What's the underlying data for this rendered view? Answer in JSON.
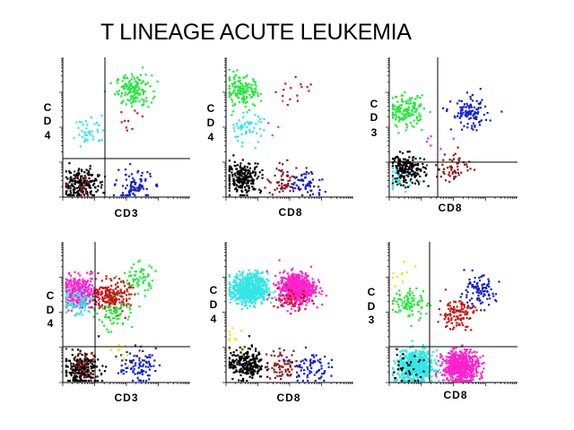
{
  "title": "T LINEAGE ACUTE LEUKEMIA",
  "colors": {
    "green": "#22e83a",
    "cyan": "#33e6e6",
    "black": "#000000",
    "blue": "#1020cc",
    "red": "#cc1010",
    "darkred": "#8b1a1a",
    "magenta": "#ff22cc",
    "yellow": "#e8e800"
  },
  "chart_data": [
    {
      "type": "scatter",
      "xlabel": "CD3",
      "ylabel": "CD4",
      "ylabel_chars": [
        "C",
        "D",
        "4"
      ],
      "axis_scale": "log",
      "populations": [
        {
          "color": "green",
          "cx": 0.55,
          "cy": 0.77,
          "n": 150
        },
        {
          "color": "cyan",
          "cx": 0.2,
          "cy": 0.48,
          "n": 40
        },
        {
          "color": "black",
          "cx": 0.13,
          "cy": 0.1,
          "n": 210
        },
        {
          "color": "darkred",
          "cx": 0.12,
          "cy": 0.1,
          "n": 25
        },
        {
          "color": "blue",
          "cx": 0.55,
          "cy": 0.08,
          "n": 90
        },
        {
          "color": "red",
          "cx": 0.5,
          "cy": 0.55,
          "n": 10
        }
      ]
    },
    {
      "type": "scatter",
      "xlabel": "CD8",
      "ylabel": "CD4",
      "ylabel_chars": [
        "C",
        "D",
        "4"
      ],
      "axis_scale": "log",
      "populations": [
        {
          "color": "green",
          "cx": 0.12,
          "cy": 0.76,
          "n": 150
        },
        {
          "color": "cyan",
          "cx": 0.15,
          "cy": 0.5,
          "n": 55
        },
        {
          "color": "black",
          "cx": 0.13,
          "cy": 0.15,
          "n": 210
        },
        {
          "color": "darkred",
          "cx": 0.45,
          "cy": 0.12,
          "n": 60
        },
        {
          "color": "blue",
          "cx": 0.62,
          "cy": 0.1,
          "n": 60
        },
        {
          "color": "red",
          "cx": 0.55,
          "cy": 0.75,
          "n": 15
        },
        {
          "color": "magenta",
          "cx": 0.45,
          "cy": 0.55,
          "n": 4
        }
      ]
    },
    {
      "type": "scatter",
      "xlabel": "CD8",
      "ylabel": "CD3",
      "ylabel_chars": [
        "C",
        "D",
        "3"
      ],
      "axis_scale": "log",
      "populations": [
        {
          "color": "green",
          "cx": 0.12,
          "cy": 0.62,
          "n": 150
        },
        {
          "color": "blue",
          "cx": 0.62,
          "cy": 0.6,
          "n": 110
        },
        {
          "color": "black",
          "cx": 0.13,
          "cy": 0.2,
          "n": 200
        },
        {
          "color": "darkred",
          "cx": 0.5,
          "cy": 0.22,
          "n": 55
        },
        {
          "color": "cyan",
          "cx": 0.08,
          "cy": 0.15,
          "n": 25
        },
        {
          "color": "magenta",
          "cx": 0.38,
          "cy": 0.4,
          "n": 6
        }
      ]
    },
    {
      "type": "scatter",
      "xlabel": "CD3",
      "ylabel": "CD4",
      "ylabel_chars": [
        "C",
        "D",
        "4"
      ],
      "axis_scale": "log",
      "populations": [
        {
          "color": "magenta",
          "cx": 0.12,
          "cy": 0.65,
          "n": 320
        },
        {
          "color": "cyan",
          "cx": 0.1,
          "cy": 0.58,
          "n": 80
        },
        {
          "color": "red",
          "cx": 0.38,
          "cy": 0.62,
          "n": 190
        },
        {
          "color": "green",
          "cx": 0.4,
          "cy": 0.5,
          "n": 70
        },
        {
          "color": "green",
          "cx": 0.58,
          "cy": 0.75,
          "n": 60
        },
        {
          "color": "black",
          "cx": 0.14,
          "cy": 0.1,
          "n": 230
        },
        {
          "color": "darkred",
          "cx": 0.14,
          "cy": 0.12,
          "n": 40
        },
        {
          "color": "blue",
          "cx": 0.58,
          "cy": 0.13,
          "n": 90
        },
        {
          "color": "yellow",
          "cx": 0.45,
          "cy": 0.2,
          "n": 12
        }
      ]
    },
    {
      "type": "scatter",
      "xlabel": "CD8",
      "ylabel": "CD4",
      "ylabel_chars": [
        "C",
        "D",
        "4"
      ],
      "axis_scale": "log",
      "populations": [
        {
          "color": "cyan",
          "cx": 0.18,
          "cy": 0.67,
          "n": 650
        },
        {
          "color": "magenta",
          "cx": 0.55,
          "cy": 0.68,
          "n": 600
        },
        {
          "color": "black",
          "cx": 0.15,
          "cy": 0.14,
          "n": 230
        },
        {
          "color": "darkred",
          "cx": 0.45,
          "cy": 0.13,
          "n": 70
        },
        {
          "color": "blue",
          "cx": 0.65,
          "cy": 0.12,
          "n": 70
        },
        {
          "color": "red",
          "cx": 0.5,
          "cy": 0.6,
          "n": 50
        },
        {
          "color": "yellow",
          "cx": 0.06,
          "cy": 0.28,
          "n": 12
        }
      ]
    },
    {
      "type": "scatter",
      "xlabel": "CD8",
      "ylabel": "CD3",
      "ylabel_chars": [
        "C",
        "D",
        "3"
      ],
      "axis_scale": "log",
      "populations": [
        {
          "color": "cyan",
          "cx": 0.2,
          "cy": 0.12,
          "n": 650
        },
        {
          "color": "magenta",
          "cx": 0.55,
          "cy": 0.12,
          "n": 550
        },
        {
          "color": "green",
          "cx": 0.15,
          "cy": 0.57,
          "n": 90
        },
        {
          "color": "red",
          "cx": 0.52,
          "cy": 0.5,
          "n": 110
        },
        {
          "color": "blue",
          "cx": 0.68,
          "cy": 0.65,
          "n": 100
        },
        {
          "color": "black",
          "cx": 0.12,
          "cy": 0.1,
          "n": 35
        },
        {
          "color": "yellow",
          "cx": 0.1,
          "cy": 0.75,
          "n": 10
        }
      ]
    }
  ]
}
